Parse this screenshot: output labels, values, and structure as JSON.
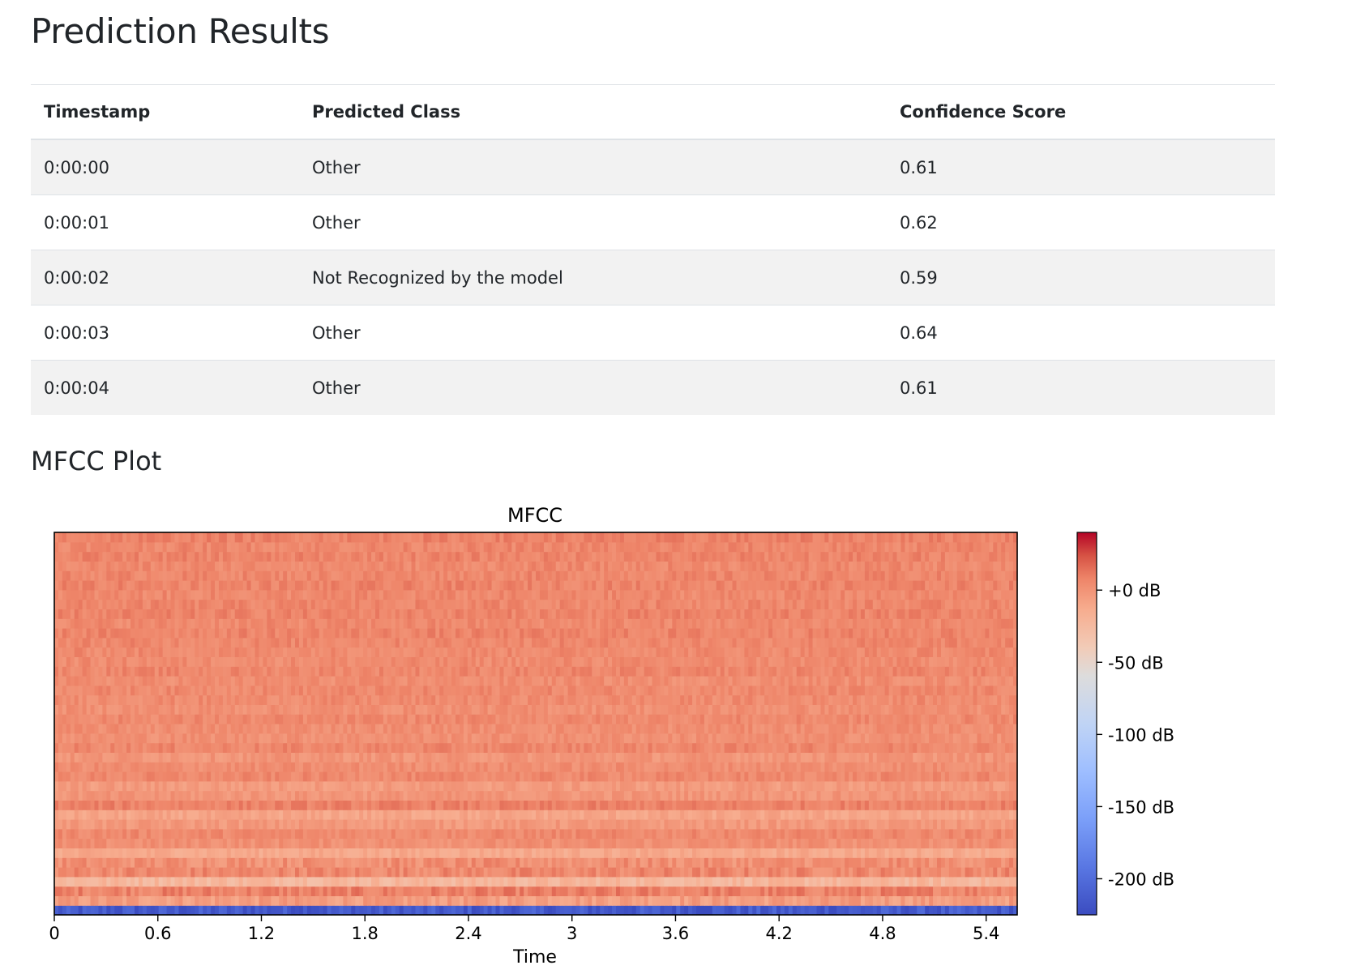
{
  "page": {
    "title": "Prediction Results"
  },
  "table": {
    "headers": [
      "Timestamp",
      "Predicted Class",
      "Confidence Score"
    ],
    "rows": [
      [
        "0:00:00",
        "Other",
        "0.61"
      ],
      [
        "0:00:01",
        "Other",
        "0.62"
      ],
      [
        "0:00:02",
        "Not Recognized by the model",
        "0.59"
      ],
      [
        "0:00:03",
        "Other",
        "0.64"
      ],
      [
        "0:00:04",
        "Other",
        "0.61"
      ]
    ]
  },
  "mfcc_section": {
    "heading": "MFCC Plot"
  },
  "chart_data": {
    "type": "heatmap",
    "title": "MFCC",
    "xlabel": "Time",
    "ylabel": "",
    "xlim": [
      0,
      5.58
    ],
    "xticks": [
      0,
      0.6,
      1.2,
      1.8,
      2.4,
      3,
      3.6,
      4.2,
      4.8,
      5.4
    ],
    "xtick_labels": [
      "0",
      "0.6",
      "1.2",
      "1.8",
      "2.4",
      "3",
      "3.6",
      "4.2",
      "4.8",
      "5.4"
    ],
    "n_coefficients": 40,
    "colormap": "coolwarm",
    "colorbar": {
      "range": [
        -225,
        40
      ],
      "ticks": [
        0,
        -50,
        -100,
        -150,
        -200
      ],
      "tick_labels": [
        "+0 dB",
        "-50 dB",
        "-100 dB",
        "-150 dB",
        "-200 dB"
      ]
    },
    "coefficient_levels_db": [
      -215,
      -5,
      8,
      -22,
      5,
      2,
      -12,
      2,
      5,
      -3,
      -10,
      8,
      -1,
      -4,
      5,
      3,
      -1,
      6,
      2,
      3,
      5,
      2,
      4,
      5,
      3,
      6,
      4,
      5,
      6,
      7,
      5,
      7,
      6,
      5,
      7,
      6,
      5,
      7,
      6,
      8
    ],
    "grid": false
  }
}
